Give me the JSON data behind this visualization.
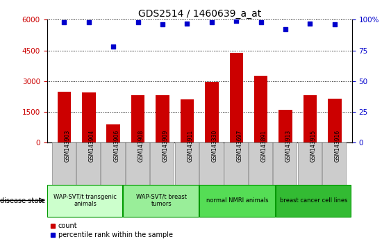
{
  "title": "GDS2514 / 1460639_a_at",
  "samples": [
    "GSM143903",
    "GSM143904",
    "GSM143906",
    "GSM143908",
    "GSM143909",
    "GSM143911",
    "GSM143330",
    "GSM143697",
    "GSM143891",
    "GSM143913",
    "GSM143915",
    "GSM143916"
  ],
  "counts": [
    2500,
    2450,
    900,
    2300,
    2300,
    2100,
    2950,
    4400,
    3250,
    1600,
    2300,
    2150
  ],
  "percentiles": [
    98,
    98,
    78,
    98,
    96,
    97,
    98,
    99,
    98,
    92,
    97,
    96
  ],
  "bar_color": "#cc0000",
  "dot_color": "#0000cc",
  "ylim_left": [
    0,
    6000
  ],
  "ylim_right": [
    0,
    100
  ],
  "yticks_left": [
    0,
    1500,
    3000,
    4500,
    6000
  ],
  "yticks_right": [
    0,
    25,
    50,
    75,
    100
  ],
  "groups": [
    {
      "label": "WAP-SVT/t transgenic\nanimals",
      "start": 0,
      "end": 3,
      "color": "#ccffcc"
    },
    {
      "label": "WAP-SVT/t breast\ntumors",
      "start": 3,
      "end": 6,
      "color": "#99ee99"
    },
    {
      "label": "normal NMRI animals",
      "start": 6,
      "end": 9,
      "color": "#55dd55"
    },
    {
      "label": "breast cancer cell lines",
      "start": 9,
      "end": 12,
      "color": "#33bb33"
    }
  ],
  "disease_state_label": "disease state",
  "legend_count_label": "count",
  "legend_percentile_label": "percentile rank within the sample",
  "background_color": "#ffffff",
  "tick_label_color_left": "#cc0000",
  "tick_label_color_right": "#0000cc",
  "title_fontsize": 10,
  "tick_fontsize": 7.5,
  "xtick_bg_color": "#cccccc",
  "group_border_color": "#009900",
  "group_fontsize": 6
}
